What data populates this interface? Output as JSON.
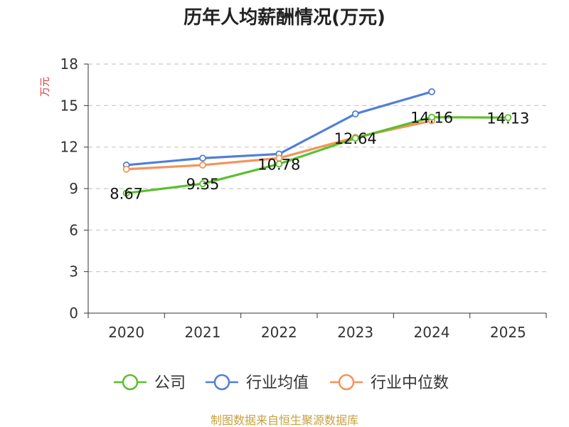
{
  "chart_data": {
    "type": "line",
    "title": "历年人均薪酬情况(万元)",
    "ylabel": "万元",
    "xlabel": "",
    "categories": [
      "2020",
      "2021",
      "2022",
      "2023",
      "2024",
      "2025"
    ],
    "ylim": [
      0,
      18
    ],
    "yticks": [
      0,
      3,
      6,
      9,
      12,
      15,
      18
    ],
    "grid": true,
    "legend_position": "bottom",
    "series": [
      {
        "name": "公司",
        "color": "#5cbf2e",
        "values": [
          8.67,
          9.35,
          10.78,
          12.64,
          14.16,
          14.13
        ],
        "labels": [
          "8.67",
          "9.35",
          "10.78",
          "12.64",
          "14.16",
          "14.13"
        ]
      },
      {
        "name": "行业均值",
        "color": "#4f7fd8",
        "values": [
          10.7,
          11.2,
          11.5,
          14.4,
          16.0,
          null
        ]
      },
      {
        "name": "行业中位数",
        "color": "#f5935a",
        "values": [
          10.4,
          10.7,
          11.2,
          12.7,
          13.9,
          null
        ]
      }
    ],
    "ylabel_color": "#e03a3a",
    "source": "制图数据来自恒生聚源数据库",
    "source_color": "#c8a040"
  }
}
